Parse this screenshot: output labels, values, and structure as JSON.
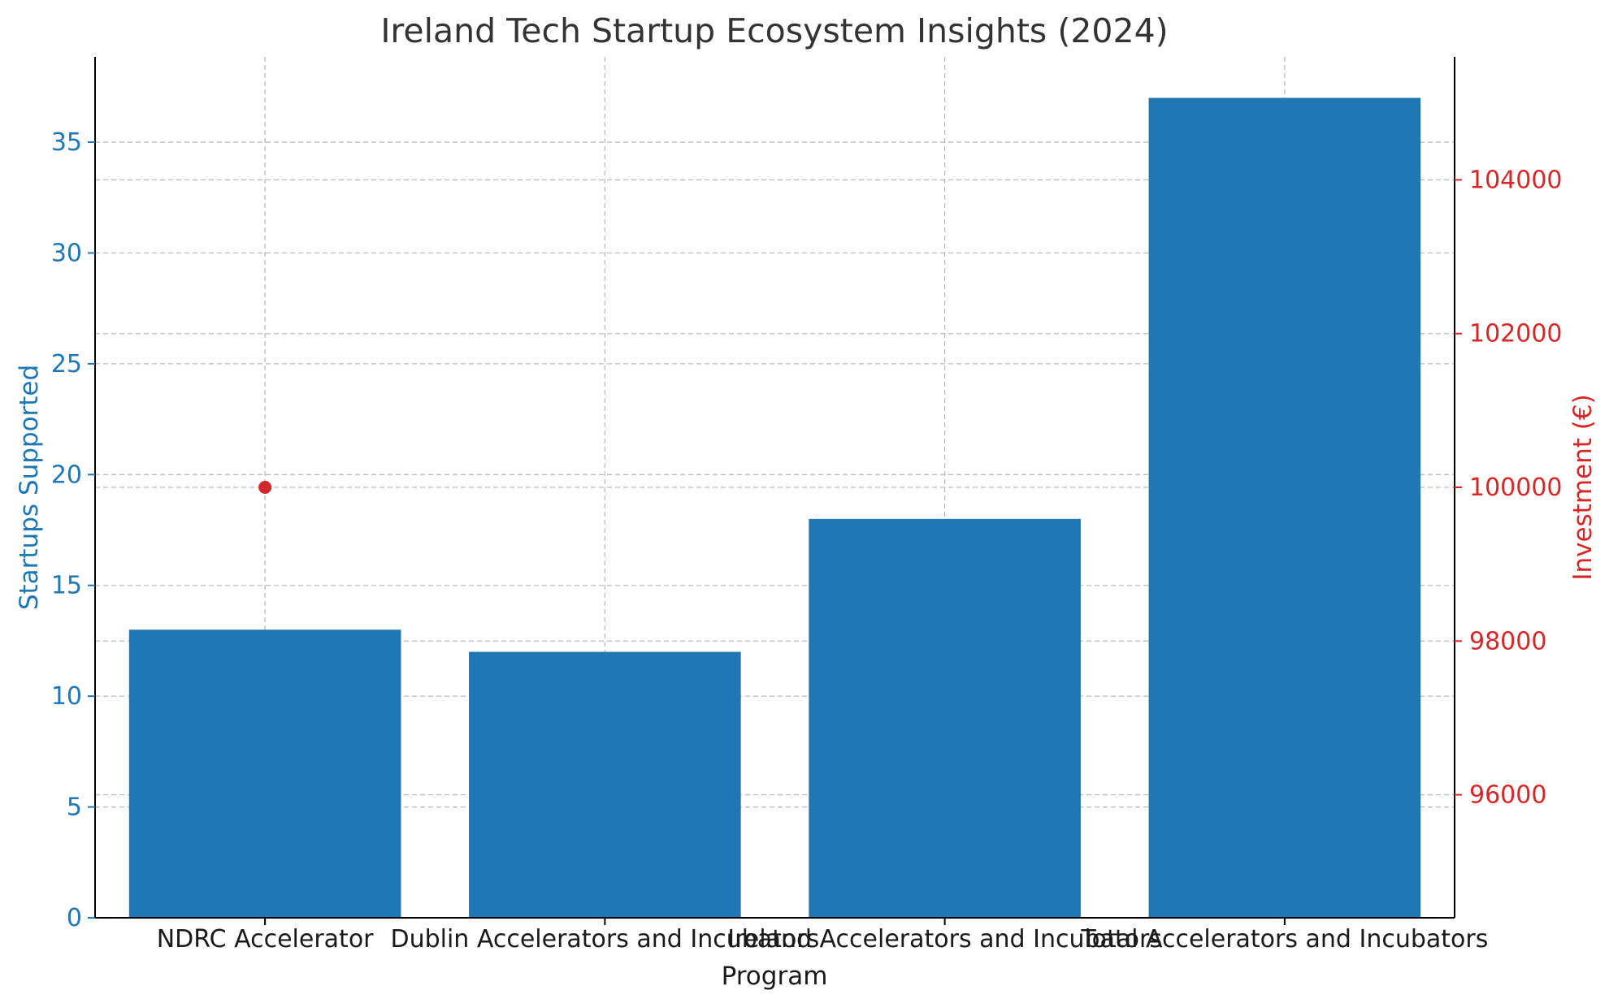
{
  "colors": {
    "bar": "#1f77b4",
    "left_axis": "#1f77b4",
    "right_axis": "#d62728",
    "point": "#d62728"
  },
  "chart_data": {
    "type": "bar",
    "title": "Ireland Tech Startup Ecosystem Insights (2024)",
    "xlabel": "Program",
    "ylabel": "Startups Supported",
    "y2label": "Investment (€)",
    "categories": [
      "NDRC Accelerator",
      "Dublin Accelerators and Incubators",
      "Ireland Accelerators and Incubators",
      "Total Accelerators and Incubators"
    ],
    "series": [
      {
        "name": "Startups Supported",
        "axis": "left",
        "kind": "bar",
        "values": [
          13,
          12,
          18,
          37
        ]
      },
      {
        "name": "Investment (€)",
        "axis": "right",
        "kind": "scatter",
        "values": [
          100000,
          null,
          null,
          null
        ]
      }
    ],
    "ylim": [
      0,
      38.85
    ],
    "yticks": [
      0,
      5,
      10,
      15,
      20,
      25,
      30,
      35
    ],
    "y2lim": [
      94400,
      105600
    ],
    "y2ticks": [
      96000,
      98000,
      100000,
      102000,
      104000
    ],
    "grid": true
  }
}
